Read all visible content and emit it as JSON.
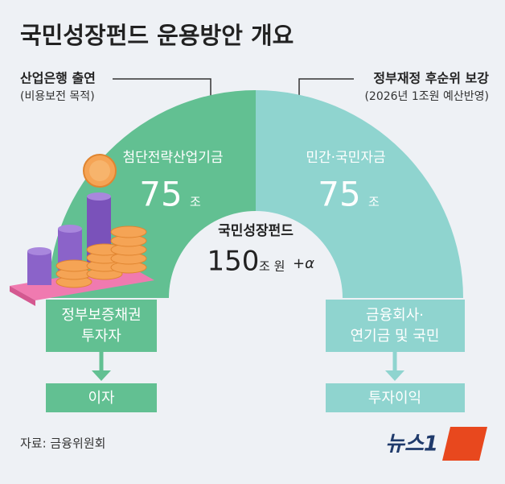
{
  "header": {
    "title": "국민성장펀드 운용방안 개요"
  },
  "left": {
    "source": "산업은행 출연",
    "source_note": "(비용보전 목적)",
    "fund": "첨단전략산업기금",
    "amount": 75,
    "unit": "조",
    "investor": [
      "정부보증채권",
      "투자자"
    ],
    "return": "이자"
  },
  "right": {
    "source": "정부재정 후순위 보강",
    "source_note": "(2026년 1조원 예산반영)",
    "fund": "민간·국민자금",
    "amount": 75,
    "unit": "조",
    "investor": [
      "금융회사·",
      "연기금 및 국민"
    ],
    "return": "투자이익"
  },
  "center": {
    "name": "국민성장펀드",
    "amount": 150,
    "unit": "조 원",
    "plus": "+α"
  },
  "footer": {
    "source": "자료: 금융위원회",
    "logo": "뉴스1"
  }
}
